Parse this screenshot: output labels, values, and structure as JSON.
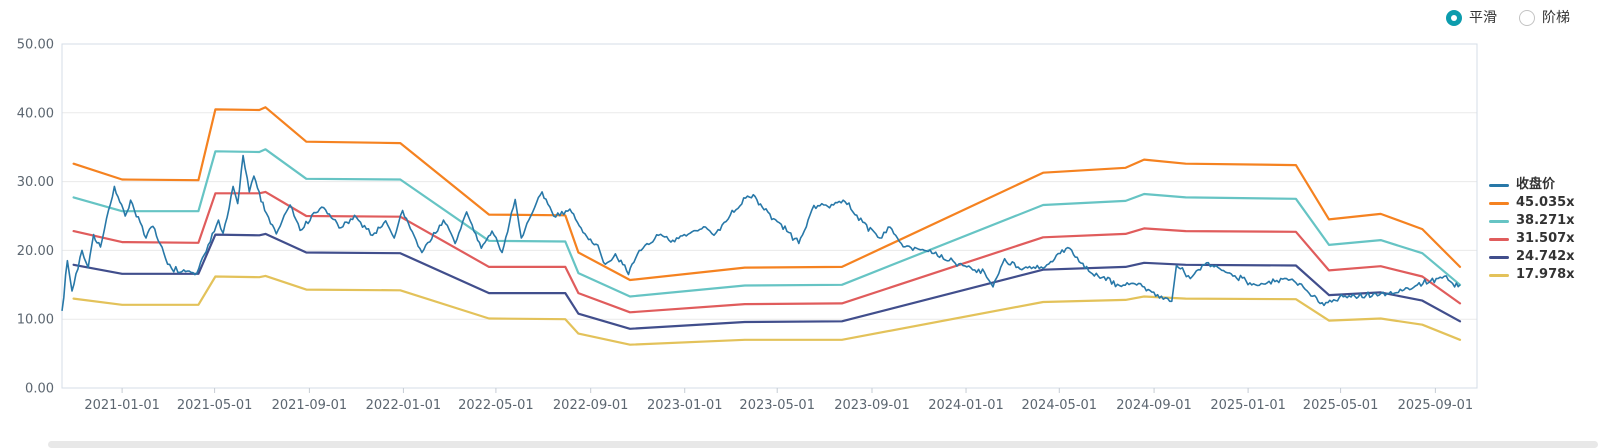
{
  "controls": {
    "options": [
      "平滑",
      "阶梯"
    ],
    "selected": "平滑",
    "accent_color": "#0c9cad"
  },
  "chart_data": {
    "type": "line",
    "title": "",
    "legend_position": "right",
    "grid": true,
    "x_axis": {
      "type": "time",
      "start": "2020-10-15",
      "end": "2025-10-25",
      "tick_labels": [
        "2021-01-01",
        "2021-05-01",
        "2021-09-01",
        "2022-01-01",
        "2022-05-01",
        "2022-09-01",
        "2023-01-01",
        "2023-05-01",
        "2023-09-01",
        "2024-01-01",
        "2024-05-01",
        "2024-09-01",
        "2025-01-01",
        "2025-05-01",
        "2025-09-01"
      ]
    },
    "y_axis": {
      "min": 0,
      "max": 50,
      "tick_labels": [
        "0.00",
        "10.00",
        "20.00",
        "30.00",
        "40.00",
        "50.00"
      ]
    },
    "series": [
      {
        "name": "收盘价",
        "type": "daily_line",
        "color": "#2878a8",
        "points": [
          [
            "2020-10-15",
            11.2
          ],
          [
            "2020-10-22",
            18.5
          ],
          [
            "2020-10-28",
            14.1
          ],
          [
            "2020-11-10",
            20.0
          ],
          [
            "2020-11-18",
            17.5
          ],
          [
            "2020-11-25",
            22.3
          ],
          [
            "2020-12-04",
            20.5
          ],
          [
            "2020-12-22",
            29.3
          ],
          [
            "2021-01-05",
            25.0
          ],
          [
            "2021-01-12",
            27.3
          ],
          [
            "2021-02-01",
            21.8
          ],
          [
            "2021-02-10",
            23.5
          ],
          [
            "2021-03-01",
            18.0
          ],
          [
            "2021-03-17",
            16.8
          ],
          [
            "2021-04-08",
            16.7
          ],
          [
            "2021-04-20",
            19.8
          ],
          [
            "2021-05-06",
            24.4
          ],
          [
            "2021-05-12",
            22.5
          ],
          [
            "2021-05-25",
            29.3
          ],
          [
            "2021-05-31",
            26.8
          ],
          [
            "2021-06-07",
            33.8
          ],
          [
            "2021-06-15",
            28.5
          ],
          [
            "2021-06-21",
            30.8
          ],
          [
            "2021-07-05",
            25.8
          ],
          [
            "2021-07-20",
            22.4
          ],
          [
            "2021-08-07",
            26.6
          ],
          [
            "2021-08-20",
            22.9
          ],
          [
            "2021-09-17",
            26.3
          ],
          [
            "2021-10-12",
            23.3
          ],
          [
            "2021-11-01",
            24.8
          ],
          [
            "2021-11-22",
            22.2
          ],
          [
            "2021-12-09",
            24.3
          ],
          [
            "2021-12-20",
            21.8
          ],
          [
            "2021-12-31",
            25.8
          ],
          [
            "2022-01-25",
            19.7
          ],
          [
            "2022-02-22",
            24.4
          ],
          [
            "2022-03-09",
            21.0
          ],
          [
            "2022-03-24",
            25.6
          ],
          [
            "2022-04-12",
            20.3
          ],
          [
            "2022-04-26",
            22.8
          ],
          [
            "2022-05-09",
            19.7
          ],
          [
            "2022-05-26",
            27.4
          ],
          [
            "2022-06-03",
            21.8
          ],
          [
            "2022-06-30",
            28.5
          ],
          [
            "2022-07-15",
            25.0
          ],
          [
            "2022-08-05",
            26.0
          ],
          [
            "2022-08-22",
            22.6
          ],
          [
            "2022-09-08",
            20.9
          ],
          [
            "2022-09-20",
            18.0
          ],
          [
            "2022-10-03",
            19.5
          ],
          [
            "2022-10-20",
            16.5
          ],
          [
            "2022-11-03",
            20.0
          ],
          [
            "2022-11-28",
            22.2
          ],
          [
            "2022-12-14",
            21.2
          ],
          [
            "2023-01-28",
            23.4
          ],
          [
            "2023-02-08",
            22.2
          ],
          [
            "2023-03-01",
            25.1
          ],
          [
            "2023-03-21",
            27.6
          ],
          [
            "2023-03-31",
            28.1
          ],
          [
            "2023-04-14",
            25.9
          ],
          [
            "2023-05-16",
            22.6
          ],
          [
            "2023-05-29",
            21.0
          ],
          [
            "2023-06-15",
            25.9
          ],
          [
            "2023-07-03",
            26.6
          ],
          [
            "2023-07-28",
            27.1
          ],
          [
            "2023-08-20",
            24.1
          ],
          [
            "2023-09-11",
            21.8
          ],
          [
            "2023-09-22",
            23.4
          ],
          [
            "2023-10-09",
            21.0
          ],
          [
            "2023-11-08",
            20.0
          ],
          [
            "2023-12-10",
            18.5
          ],
          [
            "2024-01-25",
            16.8
          ],
          [
            "2024-02-05",
            14.7
          ],
          [
            "2024-02-20",
            18.8
          ],
          [
            "2024-03-11",
            17.3
          ],
          [
            "2024-04-10",
            17.4
          ],
          [
            "2024-05-12",
            20.4
          ],
          [
            "2024-06-13",
            16.6
          ],
          [
            "2024-07-18",
            14.9
          ],
          [
            "2024-08-12",
            15.2
          ],
          [
            "2024-09-13",
            12.9
          ],
          [
            "2024-09-24",
            12.6
          ],
          [
            "2024-09-30",
            17.8
          ],
          [
            "2024-10-18",
            15.9
          ],
          [
            "2024-11-08",
            18.2
          ],
          [
            "2024-12-10",
            16.6
          ],
          [
            "2025-01-13",
            14.9
          ],
          [
            "2025-02-20",
            15.9
          ],
          [
            "2025-03-04",
            15.3
          ],
          [
            "2025-04-07",
            12.4
          ],
          [
            "2025-05-12",
            13.4
          ],
          [
            "2025-07-10",
            13.8
          ],
          [
            "2025-09-02",
            15.9
          ],
          [
            "2025-09-15",
            16.3
          ],
          [
            "2025-09-26",
            14.7
          ],
          [
            "2025-10-03",
            15.0
          ]
        ]
      },
      {
        "name": "45.035x",
        "type": "valuation_band",
        "multiple": 45.035,
        "color": "#f58220",
        "points": [
          [
            "2020-10-30",
            32.6
          ],
          [
            "2021-01-01",
            30.3
          ],
          [
            "2021-04-10",
            30.2
          ],
          [
            "2021-05-02",
            40.5
          ],
          [
            "2021-06-28",
            40.4
          ],
          [
            "2021-07-06",
            40.8
          ],
          [
            "2021-08-28",
            35.8
          ],
          [
            "2021-12-28",
            35.6
          ],
          [
            "2022-04-22",
            25.2
          ],
          [
            "2022-07-30",
            25.1
          ],
          [
            "2022-08-16",
            19.7
          ],
          [
            "2022-10-22",
            15.7
          ],
          [
            "2023-03-20",
            17.5
          ],
          [
            "2023-07-24",
            17.6
          ],
          [
            "2024-04-10",
            31.3
          ],
          [
            "2024-07-26",
            32.0
          ],
          [
            "2024-08-19",
            33.2
          ],
          [
            "2024-10-12",
            32.6
          ],
          [
            "2025-03-04",
            32.4
          ],
          [
            "2025-04-16",
            24.5
          ],
          [
            "2025-06-22",
            25.3
          ],
          [
            "2025-08-15",
            23.1
          ],
          [
            "2025-10-03",
            17.6
          ]
        ]
      },
      {
        "name": "38.271x",
        "type": "valuation_band",
        "multiple": 38.271,
        "color": "#66c4c4",
        "points": [
          [
            "2020-10-30",
            27.7
          ],
          [
            "2021-01-01",
            25.7
          ],
          [
            "2021-04-10",
            25.7
          ],
          [
            "2021-05-02",
            34.4
          ],
          [
            "2021-06-28",
            34.3
          ],
          [
            "2021-07-06",
            34.7
          ],
          [
            "2021-08-28",
            30.4
          ],
          [
            "2021-12-28",
            30.3
          ],
          [
            "2022-04-22",
            21.4
          ],
          [
            "2022-07-30",
            21.3
          ],
          [
            "2022-08-16",
            16.7
          ],
          [
            "2022-10-22",
            13.3
          ],
          [
            "2023-03-20",
            14.9
          ],
          [
            "2023-07-24",
            15.0
          ],
          [
            "2024-04-10",
            26.6
          ],
          [
            "2024-07-26",
            27.2
          ],
          [
            "2024-08-19",
            28.2
          ],
          [
            "2024-10-12",
            27.7
          ],
          [
            "2025-03-04",
            27.5
          ],
          [
            "2025-04-16",
            20.8
          ],
          [
            "2025-06-22",
            21.5
          ],
          [
            "2025-08-15",
            19.6
          ],
          [
            "2025-10-03",
            15.0
          ]
        ]
      },
      {
        "name": "31.507x",
        "type": "valuation_band",
        "multiple": 31.507,
        "color": "#e05c5c",
        "points": [
          [
            "2020-10-30",
            22.8
          ],
          [
            "2021-01-01",
            21.2
          ],
          [
            "2021-04-10",
            21.1
          ],
          [
            "2021-05-02",
            28.3
          ],
          [
            "2021-06-28",
            28.3
          ],
          [
            "2021-07-06",
            28.5
          ],
          [
            "2021-08-28",
            25.0
          ],
          [
            "2021-12-28",
            24.9
          ],
          [
            "2022-04-22",
            17.6
          ],
          [
            "2022-07-30",
            17.6
          ],
          [
            "2022-08-16",
            13.8
          ],
          [
            "2022-10-22",
            11.0
          ],
          [
            "2023-03-20",
            12.2
          ],
          [
            "2023-07-24",
            12.3
          ],
          [
            "2024-04-10",
            21.9
          ],
          [
            "2024-07-26",
            22.4
          ],
          [
            "2024-08-19",
            23.2
          ],
          [
            "2024-10-12",
            22.8
          ],
          [
            "2025-03-04",
            22.7
          ],
          [
            "2025-04-16",
            17.1
          ],
          [
            "2025-06-22",
            17.7
          ],
          [
            "2025-08-15",
            16.2
          ],
          [
            "2025-10-03",
            12.3
          ]
        ]
      },
      {
        "name": "24.742x",
        "type": "valuation_band",
        "multiple": 24.742,
        "color": "#414e8c",
        "points": [
          [
            "2020-10-30",
            17.9
          ],
          [
            "2021-01-01",
            16.6
          ],
          [
            "2021-04-10",
            16.6
          ],
          [
            "2021-05-02",
            22.3
          ],
          [
            "2021-06-28",
            22.2
          ],
          [
            "2021-07-06",
            22.4
          ],
          [
            "2021-08-28",
            19.7
          ],
          [
            "2021-12-28",
            19.6
          ],
          [
            "2022-04-22",
            13.8
          ],
          [
            "2022-07-30",
            13.8
          ],
          [
            "2022-08-16",
            10.8
          ],
          [
            "2022-10-22",
            8.6
          ],
          [
            "2023-03-20",
            9.6
          ],
          [
            "2023-07-24",
            9.7
          ],
          [
            "2024-04-10",
            17.2
          ],
          [
            "2024-07-26",
            17.6
          ],
          [
            "2024-08-19",
            18.2
          ],
          [
            "2024-10-12",
            17.9
          ],
          [
            "2025-03-04",
            17.8
          ],
          [
            "2025-04-16",
            13.5
          ],
          [
            "2025-06-22",
            13.9
          ],
          [
            "2025-08-15",
            12.7
          ],
          [
            "2025-10-03",
            9.7
          ]
        ]
      },
      {
        "name": "17.978x",
        "type": "valuation_band",
        "multiple": 17.978,
        "color": "#e3c25a",
        "points": [
          [
            "2020-10-30",
            13.0
          ],
          [
            "2021-01-01",
            12.1
          ],
          [
            "2021-04-10",
            12.1
          ],
          [
            "2021-05-02",
            16.2
          ],
          [
            "2021-06-28",
            16.1
          ],
          [
            "2021-07-06",
            16.3
          ],
          [
            "2021-08-28",
            14.3
          ],
          [
            "2021-12-28",
            14.2
          ],
          [
            "2022-04-22",
            10.1
          ],
          [
            "2022-07-30",
            10.0
          ],
          [
            "2022-08-16",
            7.9
          ],
          [
            "2022-10-22",
            6.3
          ],
          [
            "2023-03-20",
            7.0
          ],
          [
            "2023-07-24",
            7.0
          ],
          [
            "2024-04-10",
            12.5
          ],
          [
            "2024-07-26",
            12.8
          ],
          [
            "2024-08-19",
            13.3
          ],
          [
            "2024-10-12",
            13.0
          ],
          [
            "2025-03-04",
            12.9
          ],
          [
            "2025-04-16",
            9.8
          ],
          [
            "2025-06-22",
            10.1
          ],
          [
            "2025-08-15",
            9.2
          ],
          [
            "2025-10-03",
            7.0
          ]
        ]
      }
    ]
  }
}
